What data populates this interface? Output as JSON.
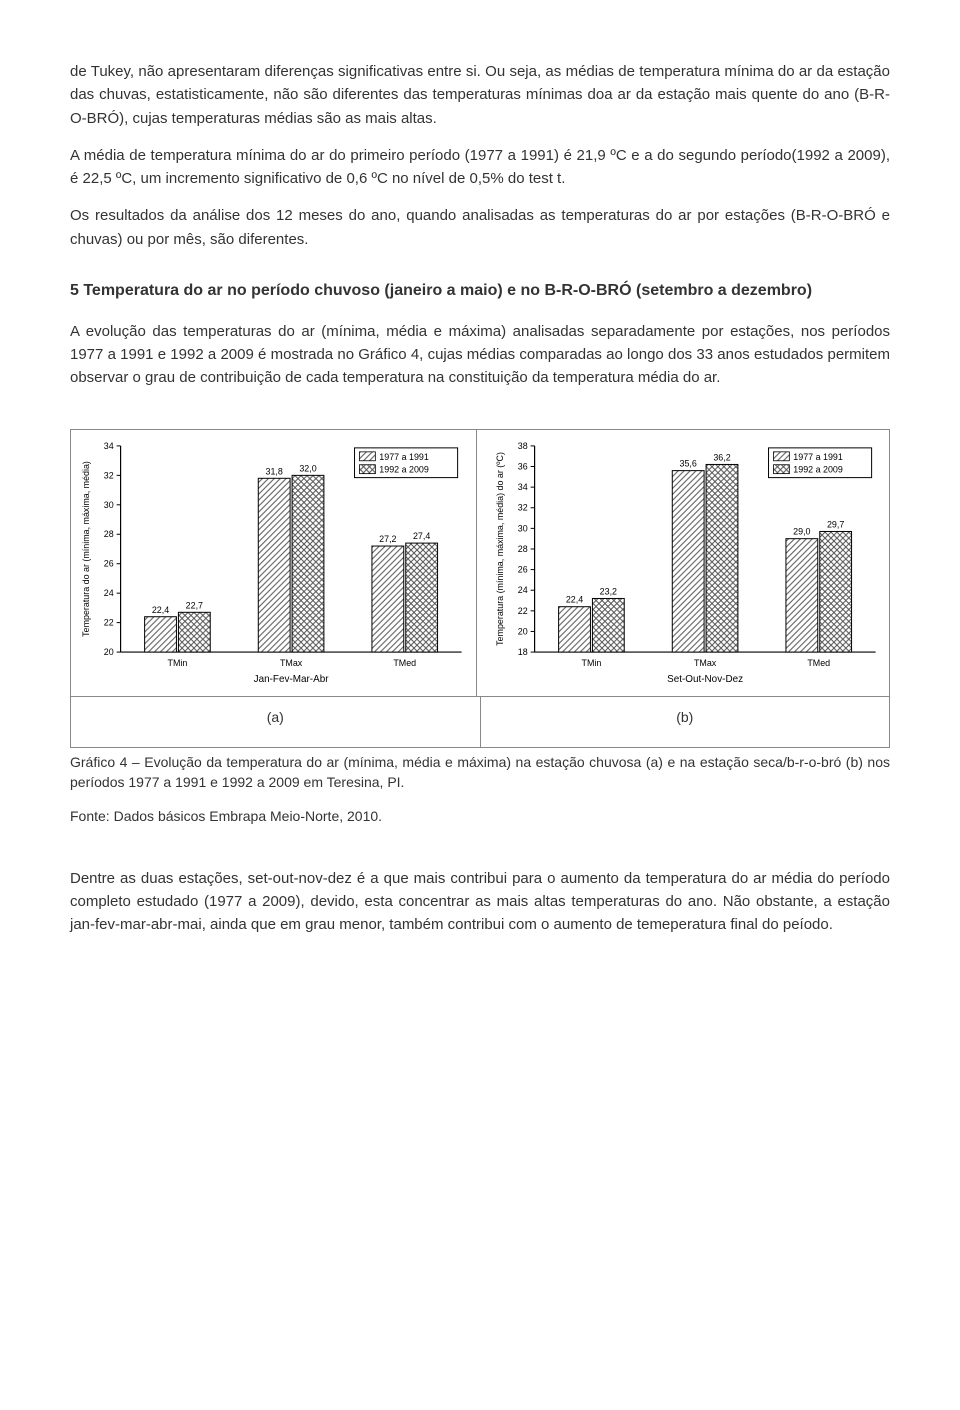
{
  "paragraphs": {
    "p1": "de Tukey, não apresentaram diferenças significativas entre si. Ou seja, as médias de temperatura mínima do ar da estação das chuvas, estatisticamente, não são diferentes das temperaturas mínimas doa ar da estação mais quente do ano (B-R-O-BRÓ), cujas temperaturas médias são as mais altas.",
    "p2": "A média de temperatura mínima do ar do primeiro período (1977 a 1991) é 21,9 ºC e a do segundo período(1992 a 2009), é 22,5 ºC, um incremento significativo de 0,6 ºC no nível de 0,5% do test t.",
    "p3": "Os resultados da análise dos 12 meses do ano, quando analisadas as temperaturas do ar por estações (B-R-O-BRÓ e chuvas) ou por mês, são diferentes.",
    "h2": "5 Temperatura do ar no período chuvoso (janeiro a maio) e no B-R-O-BRÓ (setembro a dezembro)",
    "p4": "A evolução das temperaturas do ar (mínima, média e máxima) analisadas separadamente por estações, nos períodos 1977 a 1991 e 1992 a 2009 é mostrada no Gráfico 4, cujas médias comparadas ao longo dos 33 anos estudados permitem observar o grau de contribuição de cada temperatura na constituição da temperatura média do ar.",
    "sub_a": "(a)",
    "sub_b": "(b)",
    "caption": "Gráfico 4 – Evolução da temperatura do ar (mínima, média e máxima) na estação chuvosa (a) e na estação seca/b-r-o-bró (b) nos períodos 1977 a 1991 e 1992 a 2009 em Teresina, PI.",
    "caption2": "Fonte: Dados básicos Embrapa Meio-Norte, 2010.",
    "p5": "Dentre as duas estações, set-out-nov-dez é a que mais contribui para o aumento da temperatura do ar média do período completo estudado (1977 a 2009), devido, esta concentrar as mais altas temperaturas do ano. Não obstante, a estação jan-fev-mar-abr-mai, ainda que em grau menor, também  contribui com o aumento de temeperatura final do peíodo."
  },
  "legend": {
    "a": "1977 a 1991",
    "b": "1992 a 2009"
  },
  "chart_a": {
    "type": "bar",
    "ylabel": "Temperatura do ar (mínima, máxima, média)",
    "xlabel": "Jan-Fev-Mar-Abr",
    "categories": [
      "TMin",
      "TMax",
      "TMed"
    ],
    "series": [
      {
        "name": "1977 a 1991",
        "values": [
          22.4,
          31.8,
          27.2
        ],
        "pattern": "diag1"
      },
      {
        "name": "1992 a 2009",
        "values": [
          22.7,
          32.0,
          27.4
        ],
        "pattern": "cross"
      }
    ],
    "ylim": [
      20,
      34
    ],
    "ytick_step": 2,
    "colors": {
      "axis": "#000000",
      "grid": "#bfbfbf",
      "bar_stroke": "#000000",
      "bar_fill": "#ffffff",
      "text": "#000000",
      "legend_box": "#000000"
    },
    "font_size_axis": 9,
    "font_size_label": 9
  },
  "chart_b": {
    "type": "bar",
    "ylabel": "Temperatura (mínima, máxima, média) do ar (ºC)",
    "xlabel": "Set-Out-Nov-Dez",
    "categories": [
      "TMin",
      "TMax",
      "TMed"
    ],
    "series": [
      {
        "name": "1977 a 1991",
        "values": [
          22.4,
          35.6,
          29.0
        ],
        "pattern": "diag1"
      },
      {
        "name": "1992 a 2009",
        "values": [
          23.2,
          36.2,
          29.7
        ],
        "pattern": "cross"
      }
    ],
    "ylim": [
      18,
      38
    ],
    "ytick_step": 2,
    "colors": {
      "axis": "#000000",
      "grid": "#bfbfbf",
      "bar_stroke": "#000000",
      "bar_fill": "#ffffff",
      "text": "#000000",
      "legend_box": "#000000"
    },
    "font_size_axis": 9,
    "font_size_label": 9
  }
}
